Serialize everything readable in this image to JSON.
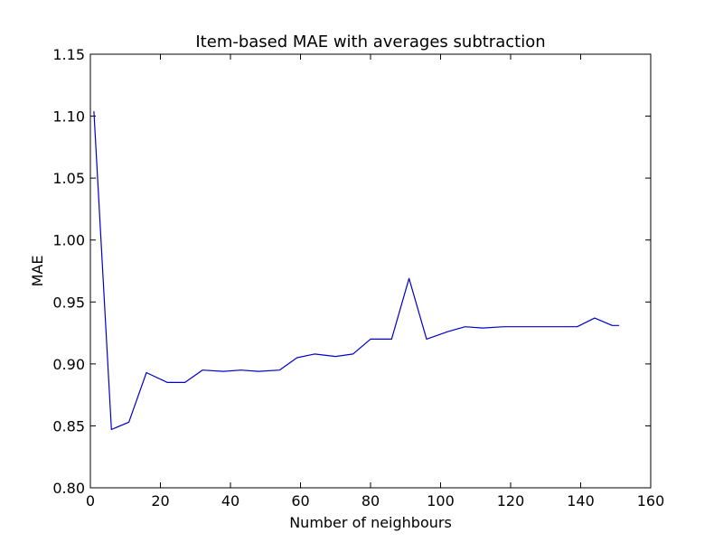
{
  "chart_data": {
    "type": "line",
    "title": "Item-based MAE with averages subtraction",
    "xlabel": "Number of neighbours",
    "ylabel": "MAE",
    "xlim": [
      0,
      160
    ],
    "ylim": [
      0.8,
      1.15
    ],
    "xticks": [
      0,
      20,
      40,
      60,
      80,
      100,
      120,
      140,
      160
    ],
    "yticks": [
      0.8,
      0.85,
      0.9,
      0.95,
      1.0,
      1.05,
      1.1,
      1.15
    ],
    "xtick_labels": [
      "0",
      "20",
      "40",
      "60",
      "80",
      "100",
      "120",
      "140",
      "160"
    ],
    "ytick_labels": [
      "0.80",
      "0.85",
      "0.90",
      "0.95",
      "1.00",
      "1.05",
      "1.10",
      "1.15"
    ],
    "grid": false,
    "series": [
      {
        "color": "#0000cc",
        "x": [
          1,
          6,
          11,
          16,
          22,
          27,
          32,
          38,
          43,
          48,
          54,
          59,
          64,
          70,
          75,
          80,
          86,
          91,
          96,
          102,
          107,
          112,
          118,
          123,
          128,
          134,
          139,
          144,
          149,
          151
        ],
        "y": [
          1.104,
          0.847,
          0.853,
          0.893,
          0.885,
          0.885,
          0.895,
          0.894,
          0.895,
          0.894,
          0.895,
          0.905,
          0.908,
          0.906,
          0.908,
          0.92,
          0.92,
          0.969,
          0.92,
          0.926,
          0.93,
          0.929,
          0.93,
          0.93,
          0.93,
          0.93,
          0.93,
          0.937,
          0.931,
          0.931
        ]
      }
    ]
  }
}
